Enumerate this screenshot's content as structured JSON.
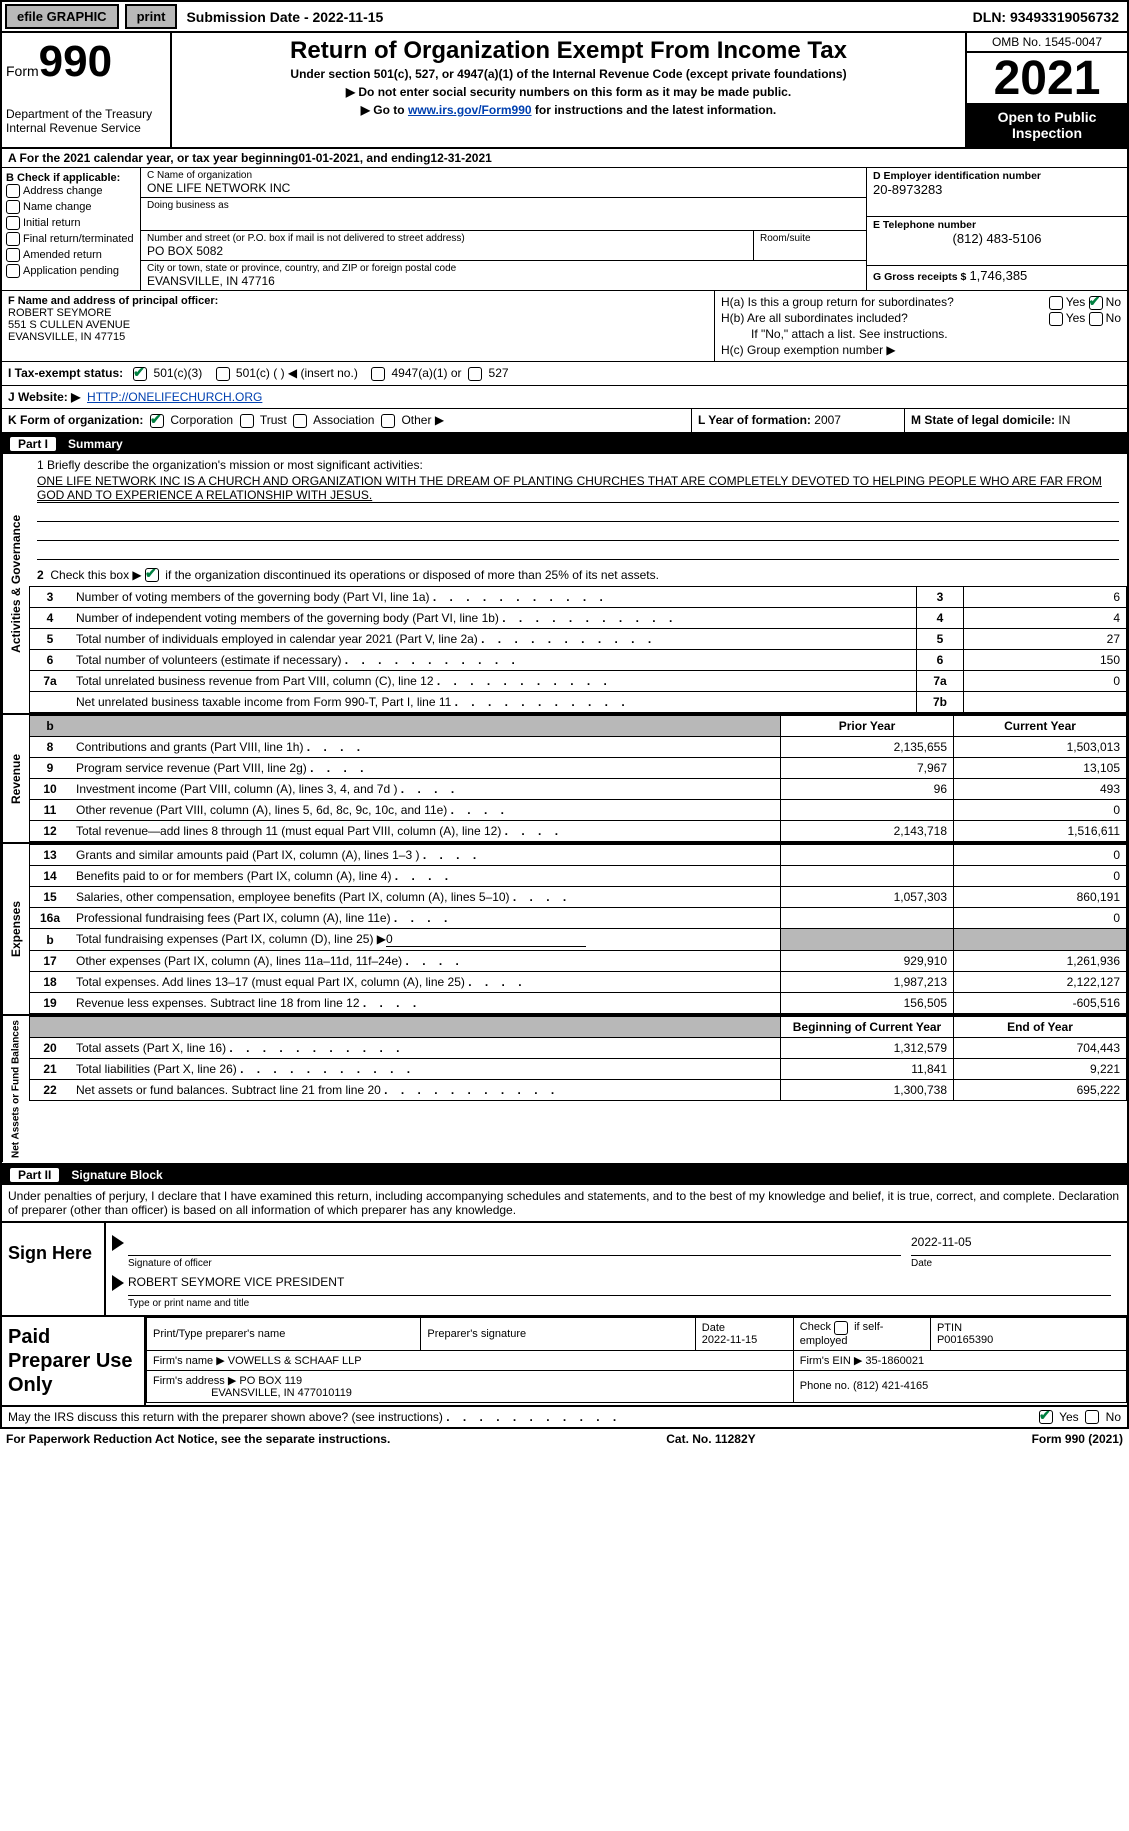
{
  "topbar": {
    "efile": "efile GRAPHIC",
    "print": "print",
    "sub_date_label": "Submission Date - 2022-11-15",
    "dln": "DLN: 93493319056732"
  },
  "header": {
    "form_label": "Form",
    "form_num": "990",
    "dept": "Department of the Treasury Internal Revenue Service",
    "title": "Return of Organization Exempt From Income Tax",
    "sub1": "Under section 501(c), 527, or 4947(a)(1) of the Internal Revenue Code (except private foundations)",
    "sub2": "▶ Do not enter social security numbers on this form as it may be made public.",
    "sub3_pre": "▶ Go to ",
    "sub3_link": "www.irs.gov/Form990",
    "sub3_post": " for instructions and the latest information.",
    "omb": "OMB No. 1545-0047",
    "year": "2021",
    "open": "Open to Public Inspection"
  },
  "A": {
    "text_pre": "A For the 2021 calendar year, or tax year beginning ",
    "begin": "01-01-2021",
    "mid": "   , and ending ",
    "end": "12-31-2021"
  },
  "B": {
    "title": "B Check if applicable:",
    "items": [
      "Address change",
      "Name change",
      "Initial return",
      "Final return/terminated",
      "Amended return",
      "Application pending"
    ]
  },
  "C": {
    "name_lbl": "C Name of organization",
    "name": "ONE LIFE NETWORK INC",
    "dba_lbl": "Doing business as",
    "dba": "",
    "addr_lbl": "Number and street (or P.O. box if mail is not delivered to street address)",
    "addr": "PO BOX 5082",
    "room_lbl": "Room/suite",
    "city_lbl": "City or town, state or province, country, and ZIP or foreign postal code",
    "city": "EVANSVILLE, IN  47716"
  },
  "D": {
    "ein_lbl": "D Employer identification number",
    "ein": "20-8973283",
    "phone_lbl": "E Telephone number",
    "phone": "(812) 483-5106",
    "gross_lbl": "G Gross receipts $",
    "gross": "1,746,385"
  },
  "F": {
    "lbl": "F Name and address of principal officer:",
    "name": "ROBERT SEYMORE",
    "addr1": "551 S CULLEN AVENUE",
    "addr2": "EVANSVILLE, IN  47715"
  },
  "H": {
    "a": "H(a)  Is this a group return for subordinates?",
    "b": "H(b)  Are all subordinates included?",
    "b_note": "If \"No,\" attach a list. See instructions.",
    "c": "H(c)  Group exemption number ▶"
  },
  "I": {
    "lbl": "I   Tax-exempt status:",
    "o1": "501(c)(3)",
    "o2": "501(c) (  ) ◀ (insert no.)",
    "o3": "4947(a)(1) or",
    "o4": "527"
  },
  "J": {
    "lbl": "J   Website: ▶",
    "val": "HTTP://ONELIFECHURCH.ORG"
  },
  "K": {
    "lbl": "K Form of organization:",
    "o1": "Corporation",
    "o2": "Trust",
    "o3": "Association",
    "o4": "Other ▶"
  },
  "L": {
    "lbl": "L Year of formation:",
    "val": "2007"
  },
  "M": {
    "lbl": "M State of legal domicile:",
    "val": "IN"
  },
  "part1": {
    "num": "Part I",
    "title": "Summary"
  },
  "vtabs": {
    "ag": "Activities & Governance",
    "rev": "Revenue",
    "exp": "Expenses",
    "nab": "Net Assets or Fund Balances"
  },
  "mission": {
    "lead": "1   Briefly describe the organization's mission or most significant activities:",
    "text": "ONE LIFE NETWORK INC IS A CHURCH AND ORGANIZATION WITH THE DREAM OF PLANTING CHURCHES THAT ARE COMPLETELY DEVOTED TO HELPING PEOPLE WHO ARE FAR FROM GOD AND TO EXPERIENCE A RELATIONSHIP WITH JESUS."
  },
  "q2": "Check this box ▶      if the organization discontinued its operations or disposed of more than 25% of its net assets.",
  "ag_rows": [
    {
      "n": "3",
      "lbl": "Number of voting members of the governing body (Part VI, line 1a)",
      "box": "3",
      "val": "6"
    },
    {
      "n": "4",
      "lbl": "Number of independent voting members of the governing body (Part VI, line 1b)",
      "box": "4",
      "val": "4"
    },
    {
      "n": "5",
      "lbl": "Total number of individuals employed in calendar year 2021 (Part V, line 2a)",
      "box": "5",
      "val": "27"
    },
    {
      "n": "6",
      "lbl": "Total number of volunteers (estimate if necessary)",
      "box": "6",
      "val": "150"
    },
    {
      "n": "7a",
      "lbl": "Total unrelated business revenue from Part VIII, column (C), line 12",
      "box": "7a",
      "val": "0"
    },
    {
      "n": "",
      "lbl": "Net unrelated business taxable income from Form 990-T, Part I, line 11",
      "box": "7b",
      "val": ""
    }
  ],
  "rev_hdr": {
    "py": "Prior Year",
    "cy": "Current Year"
  },
  "rev_rows": [
    {
      "n": "8",
      "lbl": "Contributions and grants (Part VIII, line 1h)",
      "py": "2,135,655",
      "cy": "1,503,013"
    },
    {
      "n": "9",
      "lbl": "Program service revenue (Part VIII, line 2g)",
      "py": "7,967",
      "cy": "13,105"
    },
    {
      "n": "10",
      "lbl": "Investment income (Part VIII, column (A), lines 3, 4, and 7d )",
      "py": "96",
      "cy": "493"
    },
    {
      "n": "11",
      "lbl": "Other revenue (Part VIII, column (A), lines 5, 6d, 8c, 9c, 10c, and 11e)",
      "py": "",
      "cy": "0"
    },
    {
      "n": "12",
      "lbl": "Total revenue—add lines 8 through 11 (must equal Part VIII, column (A), line 12)",
      "py": "2,143,718",
      "cy": "1,516,611"
    }
  ],
  "exp_rows": [
    {
      "n": "13",
      "lbl": "Grants and similar amounts paid (Part IX, column (A), lines 1–3 )",
      "py": "",
      "cy": "0"
    },
    {
      "n": "14",
      "lbl": "Benefits paid to or for members (Part IX, column (A), line 4)",
      "py": "",
      "cy": "0"
    },
    {
      "n": "15",
      "lbl": "Salaries, other compensation, employee benefits (Part IX, column (A), lines 5–10)",
      "py": "1,057,303",
      "cy": "860,191"
    },
    {
      "n": "16a",
      "lbl": "Professional fundraising fees (Part IX, column (A), line 11e)",
      "py": "",
      "cy": "0"
    },
    {
      "n": "b",
      "lbl": "Total fundraising expenses (Part IX, column (D), line 25) ▶",
      "py": "GRAY",
      "cy": "GRAY",
      "extra": "0"
    },
    {
      "n": "17",
      "lbl": "Other expenses (Part IX, column (A), lines 11a–11d, 11f–24e)",
      "py": "929,910",
      "cy": "1,261,936"
    },
    {
      "n": "18",
      "lbl": "Total expenses. Add lines 13–17 (must equal Part IX, column (A), line 25)",
      "py": "1,987,213",
      "cy": "2,122,127"
    },
    {
      "n": "19",
      "lbl": "Revenue less expenses. Subtract line 18 from line 12",
      "py": "156,505",
      "cy": "-605,516"
    }
  ],
  "nab_hdr": {
    "py": "Beginning of Current Year",
    "cy": "End of Year"
  },
  "nab_rows": [
    {
      "n": "20",
      "lbl": "Total assets (Part X, line 16)",
      "py": "1,312,579",
      "cy": "704,443"
    },
    {
      "n": "21",
      "lbl": "Total liabilities (Part X, line 26)",
      "py": "11,841",
      "cy": "9,221"
    },
    {
      "n": "22",
      "lbl": "Net assets or fund balances. Subtract line 21 from line 20",
      "py": "1,300,738",
      "cy": "695,222"
    }
  ],
  "part2": {
    "num": "Part II",
    "title": "Signature Block"
  },
  "sig": {
    "disclaimer": "Under penalties of perjury, I declare that I have examined this return, including accompanying schedules and statements, and to the best of my knowledge and belief, it is true, correct, and complete. Declaration of preparer (other than officer) is based on all information of which preparer has any knowledge.",
    "here": "Sign Here",
    "date": "2022-11-05",
    "sig_lbl": "Signature of officer",
    "date_lbl": "Date",
    "name": "ROBERT SEYMORE  VICE PRESIDENT",
    "name_lbl": "Type or print name and title"
  },
  "prep": {
    "title": "Paid Preparer Use Only",
    "name_lbl": "Print/Type preparer's name",
    "sig_lbl": "Preparer's signature",
    "date_lbl": "Date",
    "date": "2022-11-15",
    "check_lbl": "Check        if self-employed",
    "ptin_lbl": "PTIN",
    "ptin": "P00165390",
    "firm_name_lbl": "Firm's name      ▶",
    "firm_name": "VOWELLS & SCHAAF LLP",
    "firm_ein_lbl": "Firm's EIN ▶",
    "firm_ein": "35-1860021",
    "firm_addr_lbl": "Firm's address ▶",
    "firm_addr1": "PO BOX 119",
    "firm_addr2": "EVANSVILLE, IN  477010119",
    "phone_lbl": "Phone no.",
    "phone": "(812) 421-4165"
  },
  "discuss": {
    "q": "May the IRS discuss this return with the preparer shown above? (see instructions)",
    "yes": "Yes",
    "no": "No"
  },
  "footer": {
    "left": "For Paperwork Reduction Act Notice, see the separate instructions.",
    "mid": "Cat. No. 11282Y",
    "right": "Form 990 (2021)"
  }
}
